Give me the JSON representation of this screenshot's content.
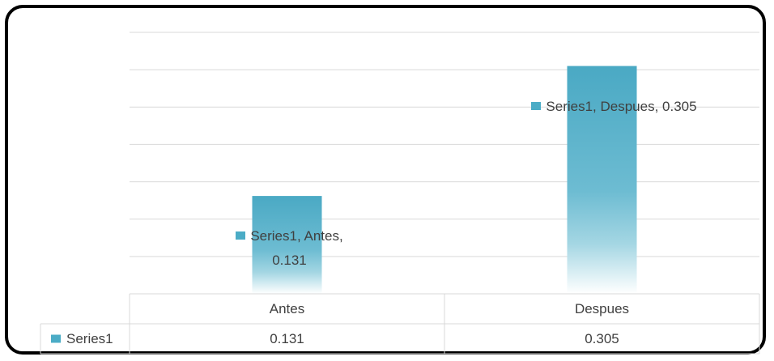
{
  "chart_data": {
    "type": "bar",
    "categories": [
      "Antes",
      "Despues"
    ],
    "series": [
      {
        "name": "Series1",
        "color": "#4bacc6",
        "values": [
          0.131,
          0.305
        ],
        "value_labels": [
          "Series1, Antes, 0.131",
          "Series1, Despues, 0.305"
        ]
      }
    ],
    "ylim": [
      0,
      0.35
    ],
    "yticks": [
      0,
      0.05,
      0.1,
      0.15,
      0.2,
      0.25,
      0.3,
      0.35
    ],
    "grid": true,
    "data_table": true
  }
}
